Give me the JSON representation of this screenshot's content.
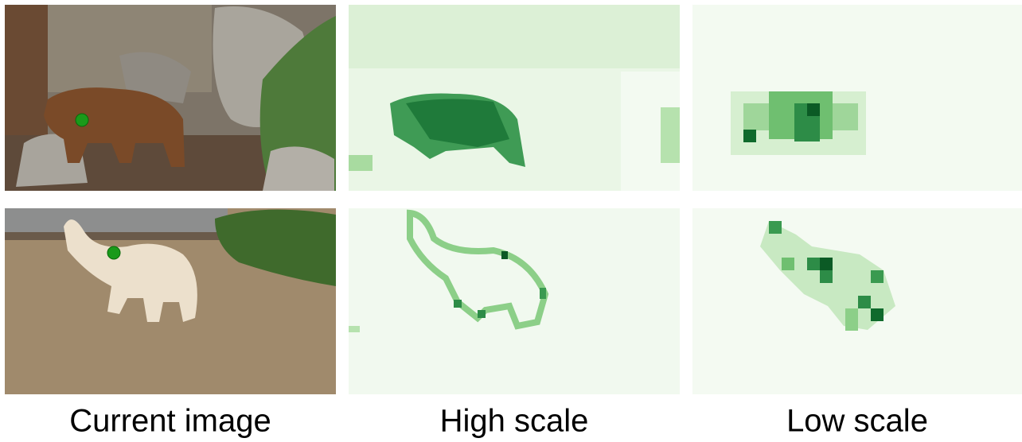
{
  "captions": [
    "Current image",
    "High scale",
    "Low scale"
  ]
}
